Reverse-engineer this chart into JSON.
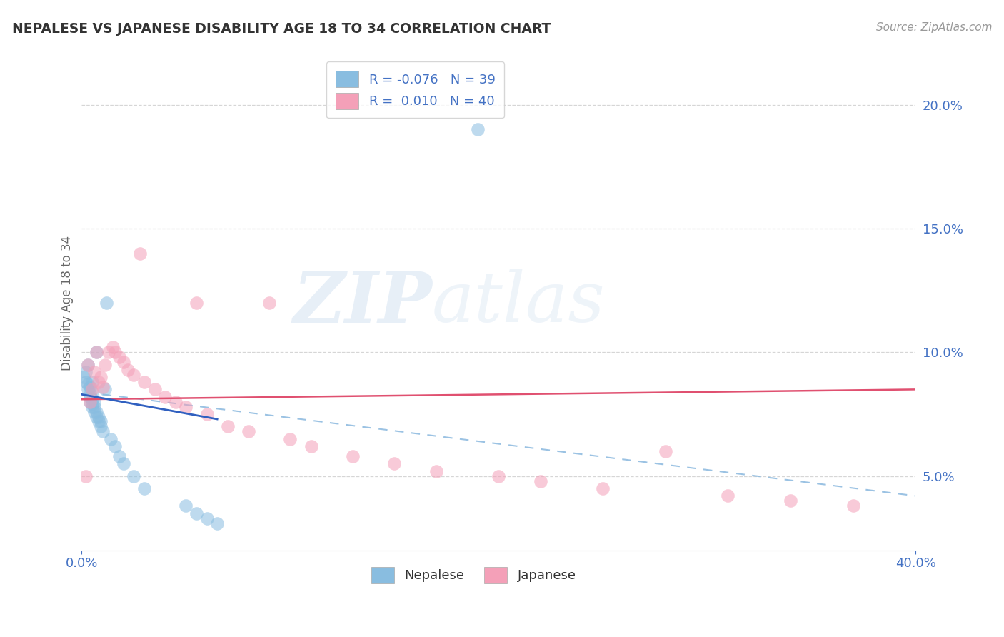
{
  "title": "NEPALESE VS JAPANESE DISABILITY AGE 18 TO 34 CORRELATION CHART",
  "source": "Source: ZipAtlas.com",
  "ylabel": "Disability Age 18 to 34",
  "xlim": [
    0.0,
    0.4
  ],
  "ylim": [
    0.02,
    0.22
  ],
  "yticks": [
    0.05,
    0.1,
    0.15,
    0.2
  ],
  "ytick_labels": [
    "5.0%",
    "10.0%",
    "15.0%",
    "20.0%"
  ],
  "nepalese_color": "#89bde0",
  "japanese_color": "#f4a0b8",
  "nepalese_line_color": "#3060c0",
  "japanese_line_color": "#e05070",
  "dashed_line_color": "#90bce0",
  "watermark_zip": "ZIP",
  "watermark_atlas": "atlas",
  "legend_label1": "Nepalese",
  "legend_label2": "Japanese",
  "background_color": "#ffffff",
  "grid_color": "#cccccc",
  "title_color": "#333333",
  "axis_label_color": "#666666",
  "tick_label_color": "#4472c4",
  "nepalese_x": [
    0.001,
    0.002,
    0.002,
    0.003,
    0.003,
    0.003,
    0.004,
    0.004,
    0.004,
    0.004,
    0.005,
    0.005,
    0.005,
    0.005,
    0.005,
    0.006,
    0.006,
    0.006,
    0.007,
    0.007,
    0.007,
    0.008,
    0.008,
    0.009,
    0.009,
    0.01,
    0.011,
    0.012,
    0.014,
    0.016,
    0.018,
    0.02,
    0.025,
    0.03,
    0.05,
    0.055,
    0.06,
    0.065,
    0.19
  ],
  "nepalese_y": [
    0.09,
    0.088,
    0.092,
    0.085,
    0.087,
    0.095,
    0.08,
    0.082,
    0.083,
    0.086,
    0.078,
    0.079,
    0.081,
    0.084,
    0.088,
    0.076,
    0.078,
    0.08,
    0.074,
    0.076,
    0.1,
    0.072,
    0.074,
    0.07,
    0.072,
    0.068,
    0.085,
    0.12,
    0.065,
    0.062,
    0.058,
    0.055,
    0.05,
    0.045,
    0.038,
    0.035,
    0.033,
    0.031,
    0.19
  ],
  "japanese_x": [
    0.002,
    0.003,
    0.004,
    0.005,
    0.006,
    0.007,
    0.008,
    0.009,
    0.01,
    0.011,
    0.013,
    0.015,
    0.016,
    0.018,
    0.02,
    0.022,
    0.025,
    0.028,
    0.03,
    0.035,
    0.04,
    0.045,
    0.05,
    0.055,
    0.06,
    0.07,
    0.08,
    0.09,
    0.1,
    0.11,
    0.13,
    0.15,
    0.17,
    0.2,
    0.22,
    0.25,
    0.28,
    0.31,
    0.34,
    0.37
  ],
  "japanese_y": [
    0.05,
    0.095,
    0.08,
    0.085,
    0.092,
    0.1,
    0.088,
    0.09,
    0.086,
    0.095,
    0.1,
    0.102,
    0.1,
    0.098,
    0.096,
    0.093,
    0.091,
    0.14,
    0.088,
    0.085,
    0.082,
    0.08,
    0.078,
    0.12,
    0.075,
    0.07,
    0.068,
    0.12,
    0.065,
    0.062,
    0.058,
    0.055,
    0.052,
    0.05,
    0.048,
    0.045,
    0.06,
    0.042,
    0.04,
    0.038
  ],
  "nepalese_line_x": [
    0.0,
    0.065
  ],
  "nepalese_line_y": [
    0.083,
    0.073
  ],
  "japanese_line_x": [
    0.0,
    0.4
  ],
  "japanese_line_y": [
    0.081,
    0.085
  ],
  "dashed_line_x": [
    0.01,
    0.4
  ],
  "dashed_line_y": [
    0.083,
    0.042
  ]
}
